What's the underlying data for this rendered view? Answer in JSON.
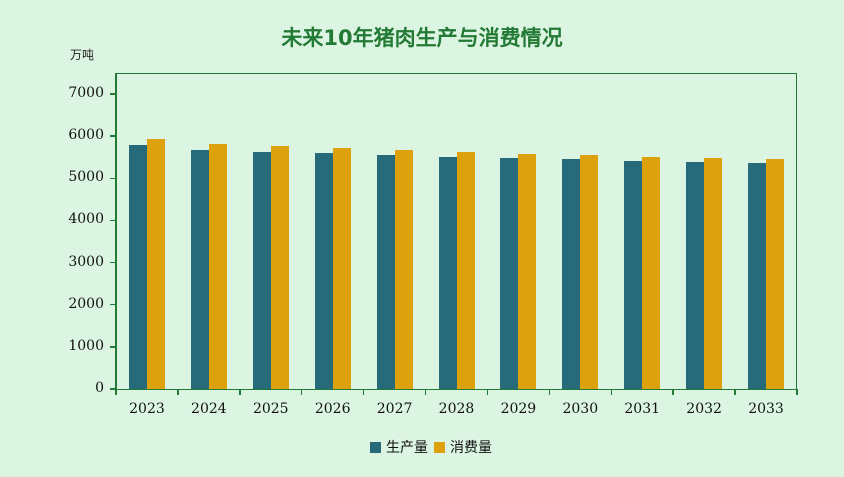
{
  "chart_data": {
    "type": "bar",
    "title": "未来10年猪肉生产与消费情况",
    "ylabel": "万吨",
    "xlabel": "",
    "ylim": [
      0,
      7000
    ],
    "yticks": [
      0,
      1000,
      2000,
      3000,
      4000,
      5000,
      6000,
      7000
    ],
    "grid": false,
    "legend_position": "bottom",
    "categories": [
      "2023",
      "2024",
      "2025",
      "2026",
      "2027",
      "2028",
      "2029",
      "2030",
      "2031",
      "2032",
      "2033"
    ],
    "series": [
      {
        "name": "生产量",
        "color": "#276a7a",
        "values": [
          5790,
          5670,
          5625,
          5600,
          5555,
          5505,
          5480,
          5460,
          5410,
          5385,
          5365
        ]
      },
      {
        "name": "消费量",
        "color": "#dca10d",
        "values": [
          5935,
          5815,
          5765,
          5720,
          5670,
          5625,
          5580,
          5555,
          5505,
          5480,
          5460
        ]
      }
    ]
  }
}
